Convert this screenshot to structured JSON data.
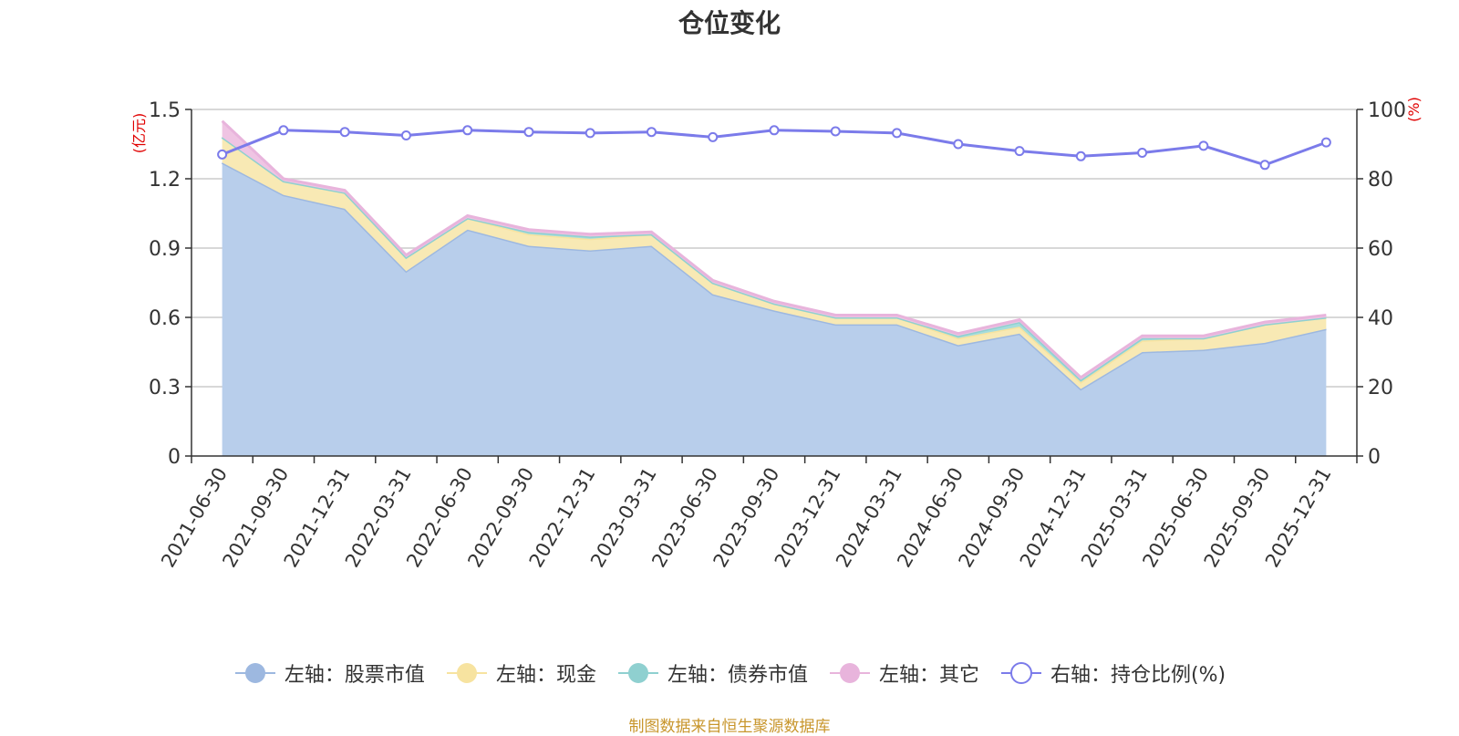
{
  "title": "仓位变化",
  "source_note": "制图数据来自恒生聚源数据库",
  "chart_data": {
    "type": "area",
    "categories": [
      "2021-06-30",
      "2021-09-30",
      "2021-12-31",
      "2022-03-31",
      "2022-06-30",
      "2022-09-30",
      "2022-12-31",
      "2023-03-31",
      "2023-06-30",
      "2023-09-30",
      "2023-12-31",
      "2024-03-31",
      "2024-06-30",
      "2024-09-30",
      "2024-12-31",
      "2025-03-31",
      "2025-06-30",
      "2025-09-30",
      "2025-12-31"
    ],
    "left_axis": {
      "unit": "(亿元)",
      "ylim": [
        0,
        1.5
      ],
      "ticks": [
        "0",
        "0.3",
        "0.6",
        "0.9",
        "1.2",
        "1.5"
      ]
    },
    "right_axis": {
      "unit": "(%)",
      "ylim": [
        0,
        100
      ],
      "ticks": [
        "0",
        "20",
        "40",
        "60",
        "80",
        "100"
      ]
    },
    "series": [
      {
        "name": "左轴：股票市值",
        "type": "stacked-area",
        "axis": "left",
        "color": "#9db8e0",
        "fill": "#b8ceeb",
        "values": [
          1.27,
          1.13,
          1.07,
          0.8,
          0.98,
          0.91,
          0.89,
          0.91,
          0.7,
          0.63,
          0.57,
          0.57,
          0.48,
          0.53,
          0.29,
          0.45,
          0.46,
          0.49,
          0.55
        ]
      },
      {
        "name": "左轴：现金",
        "type": "stacked-area",
        "axis": "left",
        "color": "#f7e3a0",
        "fill": "#f8e9b4",
        "values": [
          0.11,
          0.06,
          0.07,
          0.06,
          0.05,
          0.05,
          0.05,
          0.05,
          0.05,
          0.03,
          0.03,
          0.03,
          0.03,
          0.03,
          0.03,
          0.05,
          0.05,
          0.08,
          0.05
        ]
      },
      {
        "name": "左轴：债券市值",
        "type": "stacked-area",
        "axis": "left",
        "color": "#8fd0d0",
        "fill": "#a6dcdc",
        "values": [
          0,
          0,
          0,
          0,
          0,
          0.01,
          0.01,
          0,
          0,
          0,
          0,
          0,
          0.01,
          0.02,
          0.01,
          0.01,
          0,
          0,
          0
        ]
      },
      {
        "name": "左轴：其它",
        "type": "stacked-area",
        "axis": "left",
        "color": "#e8b4dc",
        "fill": "#efc4e3",
        "values": [
          0.07,
          0.01,
          0.01,
          0.01,
          0.01,
          0.01,
          0.01,
          0.01,
          0.01,
          0.01,
          0.01,
          0.01,
          0.01,
          0.01,
          0.01,
          0.01,
          0.01,
          0.01,
          0.01
        ]
      },
      {
        "name": "右轴：持仓比例(%)",
        "type": "line",
        "axis": "right",
        "color": "#7b7bea",
        "values": [
          87,
          94,
          93.5,
          92.5,
          94,
          93.5,
          93.2,
          93.5,
          92,
          94,
          93.7,
          93.2,
          90,
          88,
          86.5,
          87.5,
          89.5,
          84,
          90.5
        ]
      }
    ],
    "grid": true,
    "legend_position": "bottom"
  }
}
